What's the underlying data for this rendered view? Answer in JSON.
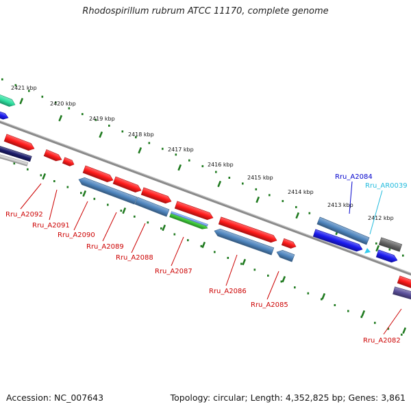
{
  "title": "Rhodospirillum rubrum ATCC 11170, complete genome",
  "footer": {
    "accession": "Accession: NC_007643",
    "summary": "Topology: circular; Length: 4,352,825 bp; Genes: 3,861"
  },
  "colors": {
    "cds_red": "#ff1a1a",
    "cds_blue": "#4f86bf",
    "cds_green": "#3ecc3a",
    "dark_blue": "#1a1af0",
    "teal": "#2ee0a0",
    "gray_feature": "#666666",
    "navy": "#1b1b6a",
    "purple": "#5a4f9a",
    "label_red": "#cc0000",
    "label_blue": "#0000cc",
    "label_cyan": "#22bbdd",
    "tick_green": "#1f7a1f",
    "backbone": "#8a8a8a"
  },
  "kbp_labels": [
    "2421 kbp",
    "2420 kbp",
    "2419 kbp",
    "2418 kbp",
    "2417 kbp",
    "2416 kbp",
    "2415 kbp",
    "2414 kbp",
    "2413 kbp",
    "2412 kbp"
  ],
  "gene_labels": [
    "Rru_A2092",
    "Rru_A2091",
    "Rru_A2090",
    "Rru_A2089",
    "Rru_A2088",
    "Rru_A2087",
    "Rru_A2086",
    "Rru_A2085",
    "Rru_A2084",
    "Rru_AR0039",
    "Rru_A2082"
  ]
}
